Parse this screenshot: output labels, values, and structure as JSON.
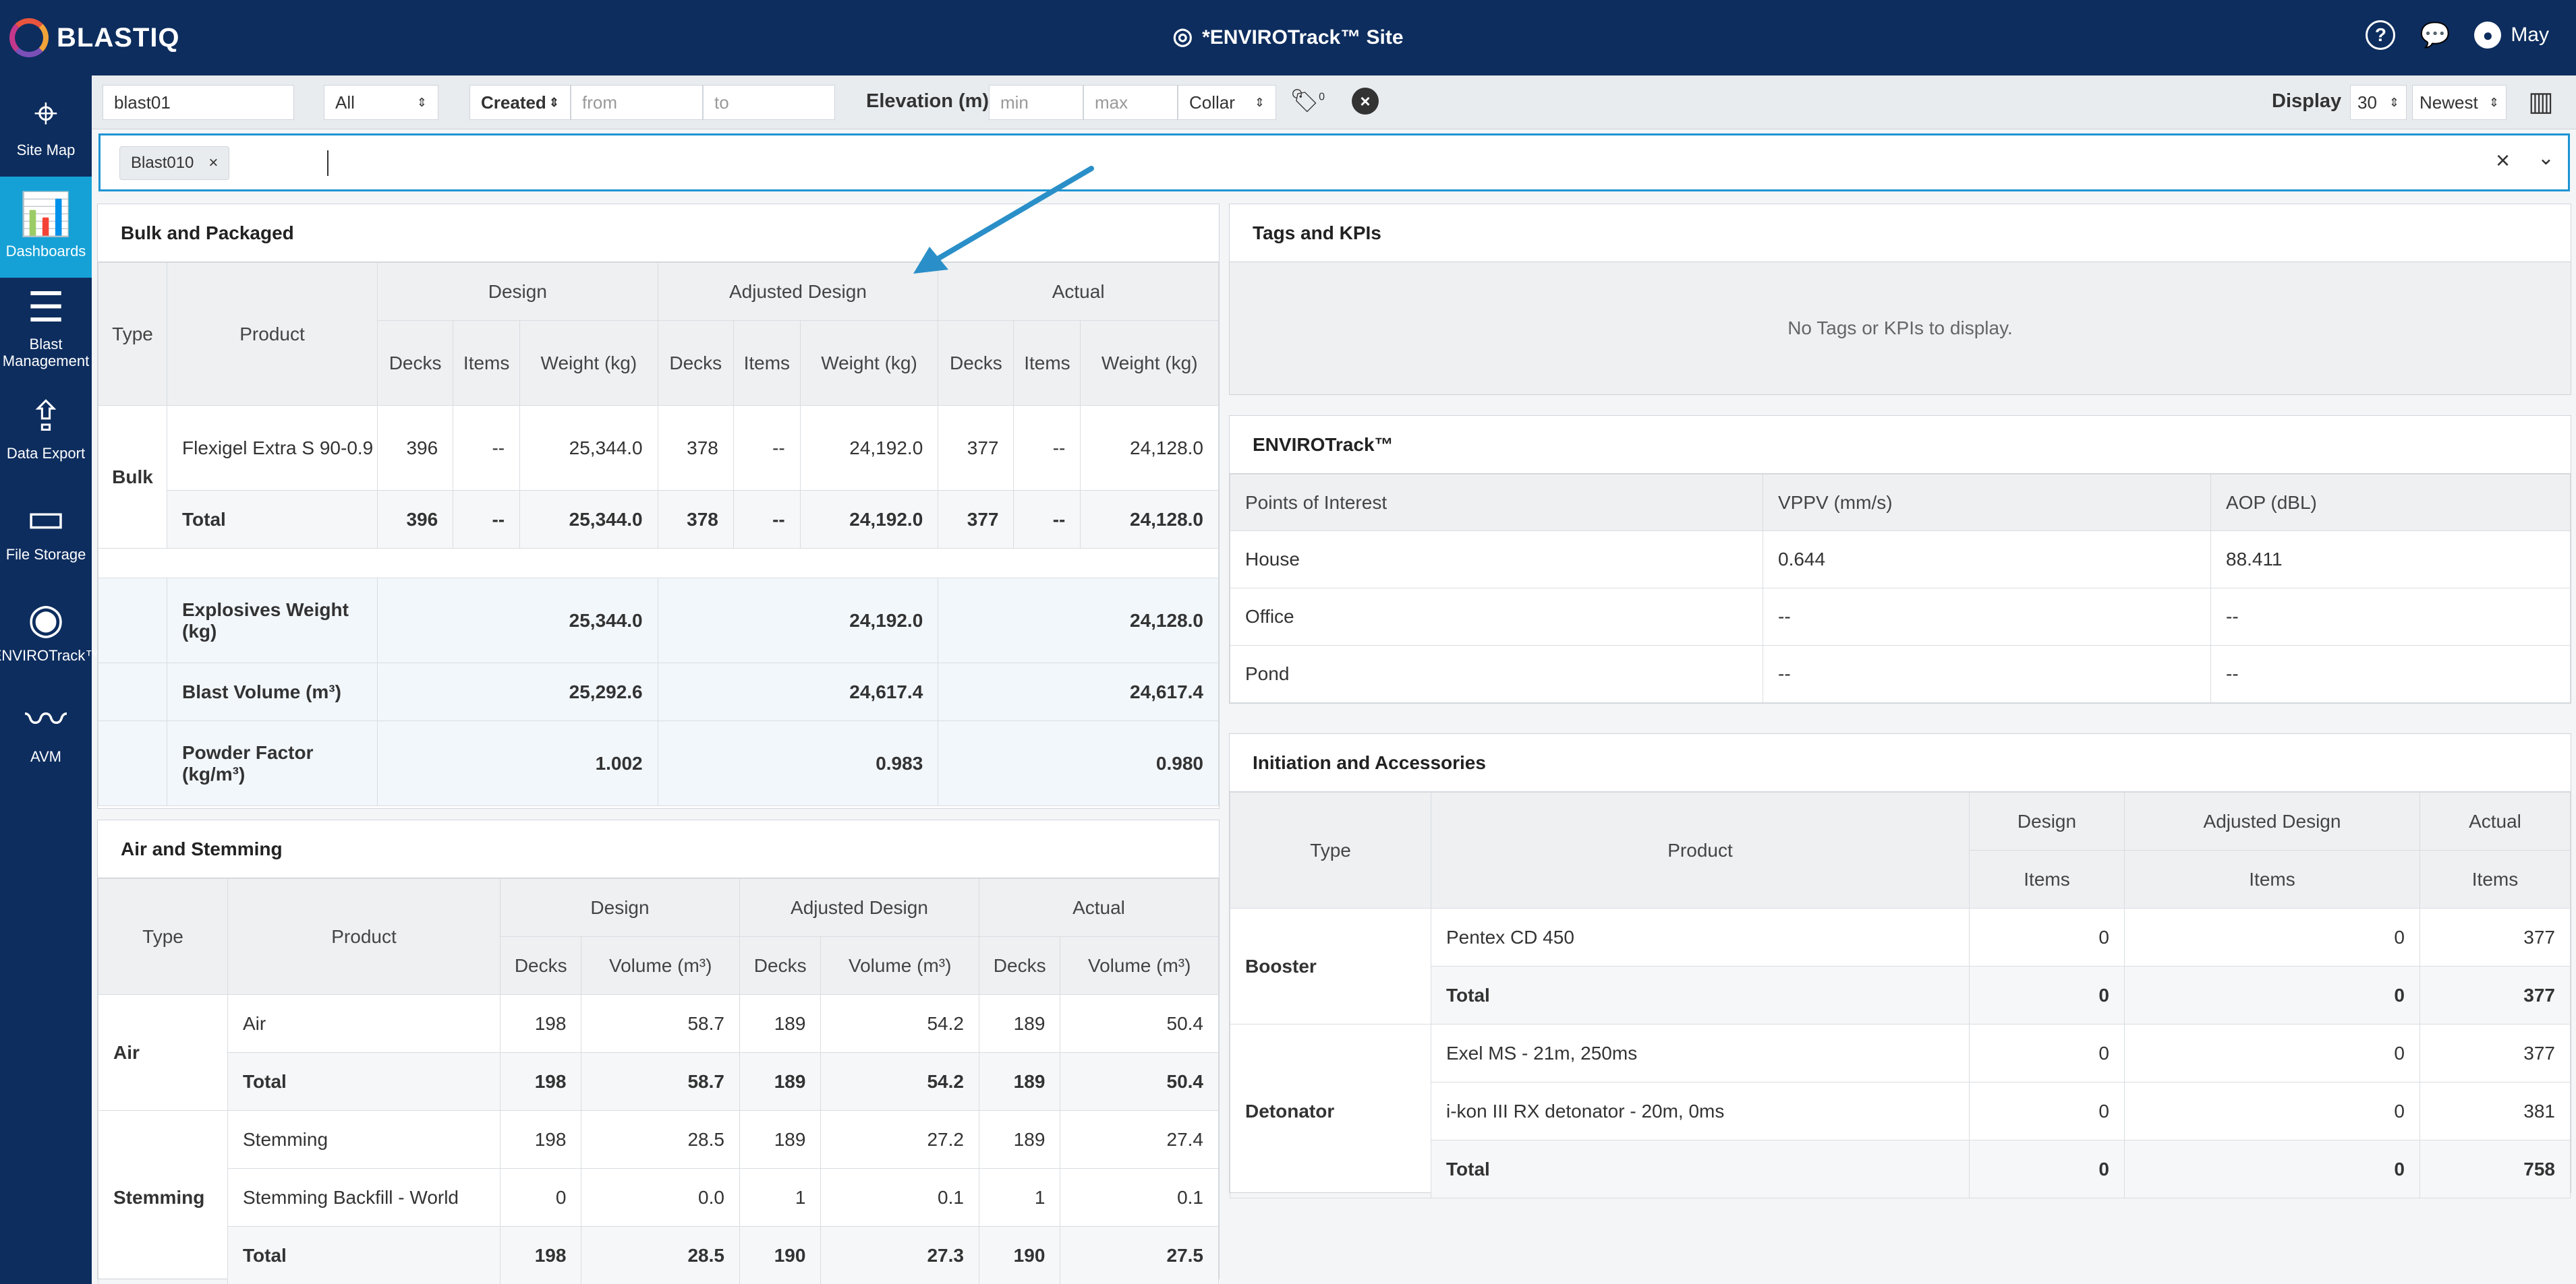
{
  "header": {
    "logo": "BLASTIQ",
    "site_title": "*ENVIROTrack™ Site",
    "user_name": "May"
  },
  "sidebar": {
    "items": [
      {
        "label": "Site Map",
        "icon": "map-icon"
      },
      {
        "label": "Dashboards",
        "icon": "dashboard-icon"
      },
      {
        "label": "Blast Management",
        "icon": "blast-management-icon"
      },
      {
        "label": "Data Export",
        "icon": "upload-icon"
      },
      {
        "label": "File Storage",
        "icon": "folder-icon"
      },
      {
        "label": "ENVIROTrack™",
        "icon": "envirotrack-icon"
      },
      {
        "label": "AVM",
        "icon": "waveform-icon"
      }
    ]
  },
  "filters": {
    "blast_value": "blast01",
    "scope_value": "All",
    "date_field": "Created",
    "from_placeholder": "from",
    "to_placeholder": "to",
    "elevation_label": "Elevation (m)",
    "min_placeholder": "min",
    "max_placeholder": "max",
    "collar_value": "Collar",
    "tag_count": "0",
    "display_label": "Display",
    "display_count": "30",
    "sort_value": "Newest",
    "chip": "Blast010"
  },
  "bulk": {
    "title": "Bulk and Packaged",
    "h_type": "Type",
    "h_product": "Product",
    "h_design": "Design",
    "h_adjusted": "Adjusted Design",
    "h_actual": "Actual",
    "h_decks": "Decks",
    "h_items": "Items",
    "h_weight": "Weight (kg)",
    "group": "Bulk",
    "row": {
      "product": "Flexigel Extra S 90-0.9",
      "d_decks": "396",
      "d_items": "--",
      "d_weight": "25,344.0",
      "a_decks": "378",
      "a_items": "--",
      "a_weight": "24,192.0",
      "c_decks": "377",
      "c_items": "--",
      "c_weight": "24,128.0"
    },
    "total": {
      "label": "Total",
      "d_decks": "396",
      "d_items": "--",
      "d_weight": "25,344.0",
      "a_decks": "378",
      "a_items": "--",
      "a_weight": "24,192.0",
      "c_decks": "377",
      "c_items": "--",
      "c_weight": "24,128.0"
    },
    "summary": [
      {
        "label": "Explosives Weight (kg)",
        "design": "25,344.0",
        "adjusted": "24,192.0",
        "actual": "24,128.0"
      },
      {
        "label": "Blast Volume (m³)",
        "design": "25,292.6",
        "adjusted": "24,617.4",
        "actual": "24,617.4"
      },
      {
        "label": "Powder Factor (kg/m³)",
        "design": "1.002",
        "adjusted": "0.983",
        "actual": "0.980"
      }
    ]
  },
  "air": {
    "title": "Air and Stemming",
    "h_type": "Type",
    "h_product": "Product",
    "h_design": "Design",
    "h_adjusted": "Adjusted Design",
    "h_actual": "Actual",
    "h_decks": "Decks",
    "h_volume": "Volume (m³)",
    "air_group": "Air",
    "air_row": {
      "product": "Air",
      "d_decks": "198",
      "d_vol": "58.7",
      "a_decks": "189",
      "a_vol": "54.2",
      "c_decks": "189",
      "c_vol": "50.4"
    },
    "air_total": {
      "label": "Total",
      "d_decks": "198",
      "d_vol": "58.7",
      "a_decks": "189",
      "a_vol": "54.2",
      "c_decks": "189",
      "c_vol": "50.4"
    },
    "stem_group": "Stemming",
    "stem_row1": {
      "product": "Stemming",
      "d_decks": "198",
      "d_vol": "28.5",
      "a_decks": "189",
      "a_vol": "27.2",
      "c_decks": "189",
      "c_vol": "27.4"
    },
    "stem_row2": {
      "product": "Stemming Backfill - World",
      "d_decks": "0",
      "d_vol": "0.0",
      "a_decks": "1",
      "a_vol": "0.1",
      "c_decks": "1",
      "c_vol": "0.1"
    },
    "stem_total": {
      "label": "Total",
      "d_decks": "198",
      "d_vol": "28.5",
      "a_decks": "190",
      "a_vol": "27.3",
      "c_decks": "190",
      "c_vol": "27.5"
    }
  },
  "tags": {
    "title": "Tags and KPIs",
    "empty": "No Tags or KPIs to display."
  },
  "envirotrack": {
    "title": "ENVIROTrack™",
    "h_poi": "Points of Interest",
    "h_vppv": "VPPV (mm/s)",
    "h_aop": "AOP (dBL)",
    "rows": [
      {
        "poi": "House",
        "vppv": "0.644",
        "aop": "88.411"
      },
      {
        "poi": "Office",
        "vppv": "--",
        "aop": "--"
      },
      {
        "poi": "Pond",
        "vppv": "--",
        "aop": "--"
      }
    ]
  },
  "initiation": {
    "title": "Initiation and Accessories",
    "h_type": "Type",
    "h_product": "Product",
    "h_design": "Design",
    "h_adjusted": "Adjusted Design",
    "h_actual": "Actual",
    "h_items": "Items",
    "booster_group": "Booster",
    "booster_row": {
      "product": "Pentex CD 450",
      "design": "0",
      "adjusted": "0",
      "actual": "377"
    },
    "booster_total": {
      "label": "Total",
      "design": "0",
      "adjusted": "0",
      "actual": "377"
    },
    "det_group": "Detonator",
    "det_row1": {
      "product": "Exel MS - 21m, 250ms",
      "design": "0",
      "adjusted": "0",
      "actual": "377"
    },
    "det_row2": {
      "product": "i-kon III RX detonator - 20m, 0ms",
      "design": "0",
      "adjusted": "0",
      "actual": "381"
    },
    "det_total": {
      "label": "Total",
      "design": "0",
      "adjusted": "0",
      "actual": "758"
    }
  }
}
